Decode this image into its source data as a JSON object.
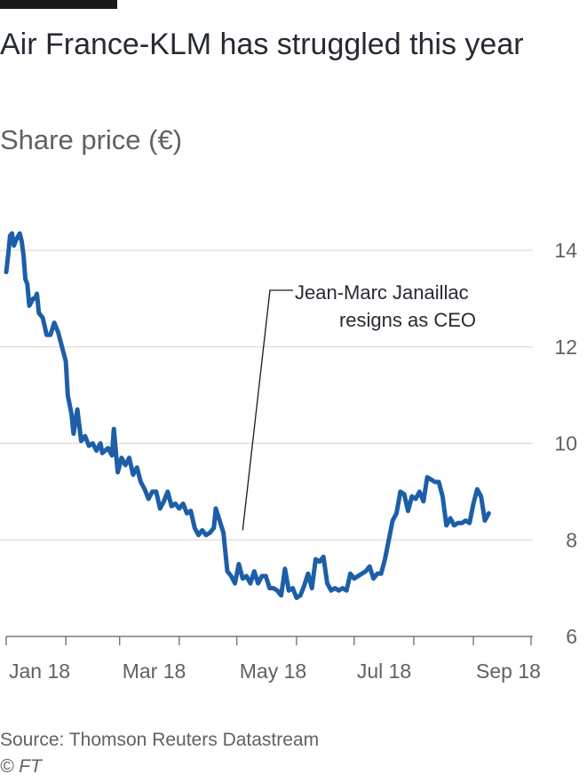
{
  "header": {
    "title": "Air France-KLM has struggled this year",
    "subtitle": "Share price (€)"
  },
  "footer": {
    "source": "Source: Thomson Reuters Datastream",
    "copyright": "© FT"
  },
  "colors": {
    "line": "#1d5ea8",
    "grid": "#e6d9ce",
    "axis": "#66605c",
    "text": "#262a33"
  },
  "chart_data": {
    "type": "line",
    "title": "Air France-KLM has struggled this year",
    "subtitle": "Share price (€)",
    "xlabel": "",
    "ylabel": "",
    "ylim": [
      6,
      14
    ],
    "xlim": [
      "2018-01-01",
      "2018-10-01"
    ],
    "y_ticks": [
      6,
      8,
      10,
      12,
      14
    ],
    "y_axis_position": "right",
    "x_ticks": [
      {
        "date": "2018-01-01",
        "label": "Jan 18"
      },
      {
        "date": "2018-02-01",
        "label": ""
      },
      {
        "date": "2018-03-01",
        "label": "Mar 18"
      },
      {
        "date": "2018-04-01",
        "label": ""
      },
      {
        "date": "2018-05-01",
        "label": "May 18"
      },
      {
        "date": "2018-06-01",
        "label": ""
      },
      {
        "date": "2018-07-01",
        "label": "Jul 18"
      },
      {
        "date": "2018-08-01",
        "label": ""
      },
      {
        "date": "2018-09-01",
        "label": "Sep 18"
      },
      {
        "date": "2018-10-01",
        "label": ""
      }
    ],
    "grid": true,
    "annotations": [
      {
        "date": "2018-05-04",
        "value": 8.2,
        "text_lines": [
          "Jean-Marc Janaillac",
          "resigns as CEO"
        ]
      }
    ],
    "series": [
      {
        "points": [
          [
            "2018-01-01",
            13.55
          ],
          [
            "2018-01-02",
            13.9
          ],
          [
            "2018-01-03",
            14.3
          ],
          [
            "2018-01-04",
            14.35
          ],
          [
            "2018-01-05",
            14.1
          ],
          [
            "2018-01-06",
            14.2
          ],
          [
            "2018-01-08",
            14.35
          ],
          [
            "2018-01-09",
            14.2
          ],
          [
            "2018-01-10",
            13.9
          ],
          [
            "2018-01-11",
            13.4
          ],
          [
            "2018-01-12",
            13.3
          ],
          [
            "2018-01-13",
            12.85
          ],
          [
            "2018-01-15",
            13.0
          ],
          [
            "2018-01-16",
            13.0
          ],
          [
            "2018-01-17",
            13.1
          ],
          [
            "2018-01-18",
            12.7
          ],
          [
            "2018-01-20",
            12.6
          ],
          [
            "2018-01-22",
            12.25
          ],
          [
            "2018-01-24",
            12.25
          ],
          [
            "2018-01-26",
            12.5
          ],
          [
            "2018-01-28",
            12.3
          ],
          [
            "2018-01-30",
            12.0
          ],
          [
            "2018-02-01",
            11.7
          ],
          [
            "2018-02-02",
            11.0
          ],
          [
            "2018-02-04",
            10.6
          ],
          [
            "2018-02-05",
            10.2
          ],
          [
            "2018-02-07",
            10.7
          ],
          [
            "2018-02-09",
            10.05
          ],
          [
            "2018-02-11",
            10.15
          ],
          [
            "2018-02-13",
            9.95
          ],
          [
            "2018-02-15",
            10.0
          ],
          [
            "2018-02-17",
            9.85
          ],
          [
            "2018-02-19",
            10.0
          ],
          [
            "2018-02-20",
            9.8
          ],
          [
            "2018-02-23",
            9.9
          ],
          [
            "2018-02-25",
            9.75
          ],
          [
            "2018-02-26",
            10.3
          ],
          [
            "2018-02-28",
            9.4
          ],
          [
            "2018-03-02",
            9.7
          ],
          [
            "2018-03-04",
            9.55
          ],
          [
            "2018-03-06",
            9.7
          ],
          [
            "2018-03-08",
            9.35
          ],
          [
            "2018-03-10",
            9.5
          ],
          [
            "2018-03-12",
            9.2
          ],
          [
            "2018-03-14",
            9.05
          ],
          [
            "2018-03-16",
            8.85
          ],
          [
            "2018-03-18",
            9.0
          ],
          [
            "2018-03-20",
            9.0
          ],
          [
            "2018-03-22",
            8.65
          ],
          [
            "2018-03-24",
            8.8
          ],
          [
            "2018-03-26",
            9.0
          ],
          [
            "2018-03-28",
            8.7
          ],
          [
            "2018-03-30",
            8.75
          ],
          [
            "2018-04-01",
            8.65
          ],
          [
            "2018-04-03",
            8.75
          ],
          [
            "2018-04-05",
            8.55
          ],
          [
            "2018-04-07",
            8.6
          ],
          [
            "2018-04-09",
            8.25
          ],
          [
            "2018-04-11",
            8.1
          ],
          [
            "2018-04-13",
            8.2
          ],
          [
            "2018-04-15",
            8.1
          ],
          [
            "2018-04-17",
            8.15
          ],
          [
            "2018-04-19",
            8.25
          ],
          [
            "2018-04-20",
            8.65
          ],
          [
            "2018-04-22",
            8.4
          ],
          [
            "2018-04-24",
            8.15
          ],
          [
            "2018-04-26",
            7.35
          ],
          [
            "2018-04-28",
            7.25
          ],
          [
            "2018-04-30",
            7.1
          ],
          [
            "2018-05-02",
            7.5
          ],
          [
            "2018-05-04",
            7.2
          ],
          [
            "2018-05-06",
            7.25
          ],
          [
            "2018-05-08",
            7.1
          ],
          [
            "2018-05-10",
            7.35
          ],
          [
            "2018-05-12",
            7.1
          ],
          [
            "2018-05-14",
            7.25
          ],
          [
            "2018-05-16",
            7.25
          ],
          [
            "2018-05-18",
            7.0
          ],
          [
            "2018-05-20",
            7.0
          ],
          [
            "2018-05-22",
            6.95
          ],
          [
            "2018-05-24",
            6.85
          ],
          [
            "2018-05-26",
            7.4
          ],
          [
            "2018-05-28",
            6.95
          ],
          [
            "2018-05-30",
            7.0
          ],
          [
            "2018-06-01",
            6.8
          ],
          [
            "2018-06-03",
            6.85
          ],
          [
            "2018-06-05",
            7.05
          ],
          [
            "2018-06-07",
            7.3
          ],
          [
            "2018-06-09",
            7.0
          ],
          [
            "2018-06-11",
            7.6
          ],
          [
            "2018-06-13",
            7.55
          ],
          [
            "2018-06-15",
            7.65
          ],
          [
            "2018-06-17",
            7.1
          ],
          [
            "2018-06-19",
            6.95
          ],
          [
            "2018-06-21",
            7.0
          ],
          [
            "2018-06-23",
            6.95
          ],
          [
            "2018-06-25",
            7.0
          ],
          [
            "2018-06-27",
            6.95
          ],
          [
            "2018-06-29",
            7.3
          ],
          [
            "2018-07-01",
            7.2
          ],
          [
            "2018-07-03",
            7.25
          ],
          [
            "2018-07-05",
            7.3
          ],
          [
            "2018-07-07",
            7.35
          ],
          [
            "2018-07-09",
            7.45
          ],
          [
            "2018-07-11",
            7.2
          ],
          [
            "2018-07-13",
            7.3
          ],
          [
            "2018-07-15",
            7.3
          ],
          [
            "2018-07-17",
            7.6
          ],
          [
            "2018-07-19",
            8.0
          ],
          [
            "2018-07-21",
            8.4
          ],
          [
            "2018-07-23",
            8.55
          ],
          [
            "2018-07-25",
            9.0
          ],
          [
            "2018-07-27",
            8.95
          ],
          [
            "2018-07-29",
            8.6
          ],
          [
            "2018-07-31",
            8.9
          ],
          [
            "2018-08-02",
            8.85
          ],
          [
            "2018-08-04",
            9.0
          ],
          [
            "2018-08-06",
            8.8
          ],
          [
            "2018-08-08",
            9.3
          ],
          [
            "2018-08-10",
            9.25
          ],
          [
            "2018-08-12",
            9.2
          ],
          [
            "2018-08-14",
            9.2
          ],
          [
            "2018-08-16",
            8.9
          ],
          [
            "2018-08-18",
            8.3
          ],
          [
            "2018-08-20",
            8.45
          ],
          [
            "2018-08-22",
            8.3
          ],
          [
            "2018-08-24",
            8.35
          ],
          [
            "2018-08-26",
            8.35
          ],
          [
            "2018-08-28",
            8.4
          ],
          [
            "2018-08-30",
            8.35
          ],
          [
            "2018-09-01",
            8.75
          ],
          [
            "2018-09-03",
            9.05
          ],
          [
            "2018-09-05",
            8.9
          ],
          [
            "2018-09-07",
            8.4
          ],
          [
            "2018-09-09",
            8.55
          ]
        ]
      }
    ]
  }
}
